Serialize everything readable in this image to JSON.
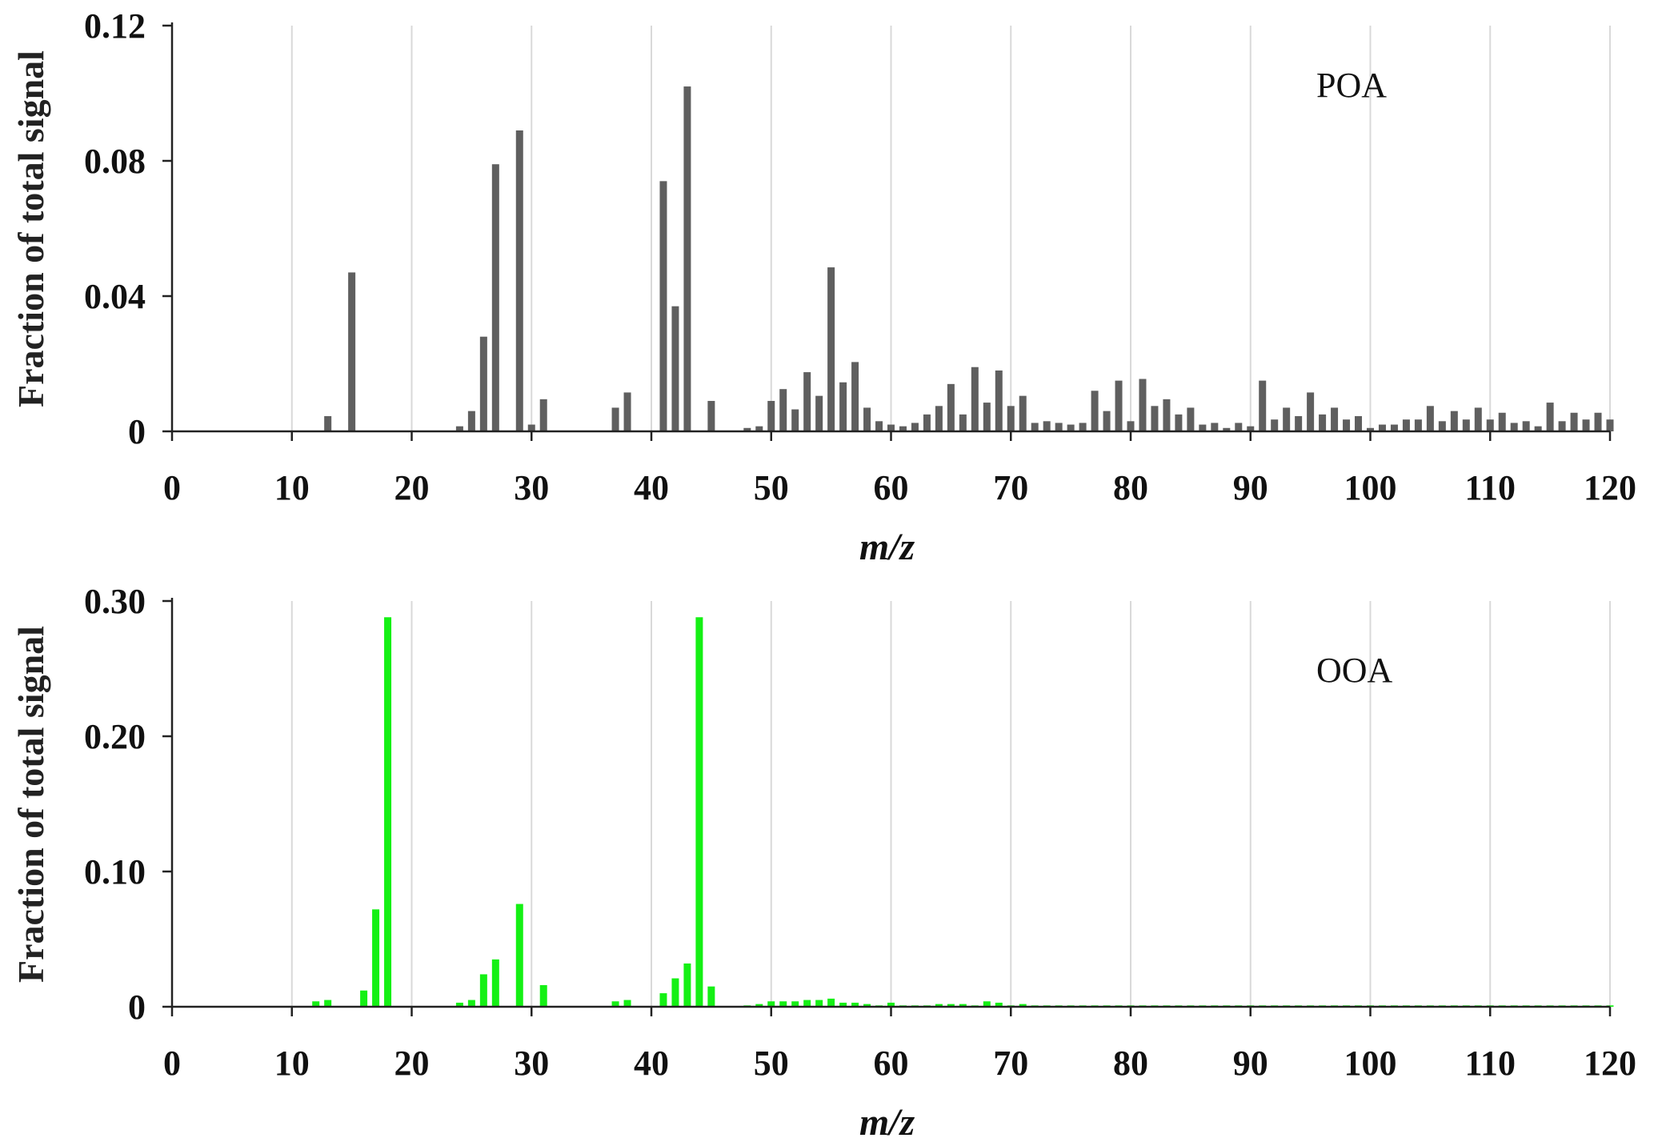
{
  "chart_data": [
    {
      "type": "bar",
      "annotation": "POA",
      "xlabel": "m/z",
      "ylabel": "Fraction of total signal",
      "xlim": [
        0,
        120
      ],
      "ylim": [
        0,
        0.12
      ],
      "xticks": [
        "0",
        "10",
        "20",
        "30",
        "40",
        "50",
        "60",
        "70",
        "80",
        "90",
        "100",
        "110",
        "120"
      ],
      "yticks": [
        "0",
        "0.04",
        "0.08",
        "0.12"
      ],
      "grid": "vertical",
      "color": "#5f5f5f",
      "x": [
        13,
        15,
        24,
        25,
        26,
        27,
        29,
        30,
        31,
        37,
        38,
        41,
        42,
        43,
        45,
        48,
        49,
        50,
        51,
        52,
        53,
        54,
        55,
        56,
        57,
        58,
        59,
        60,
        61,
        62,
        63,
        64,
        65,
        66,
        67,
        68,
        69,
        70,
        71,
        72,
        73,
        74,
        75,
        76,
        77,
        78,
        79,
        80,
        81,
        82,
        83,
        84,
        85,
        86,
        87,
        88,
        89,
        90,
        91,
        92,
        93,
        94,
        95,
        96,
        97,
        98,
        99,
        100,
        101,
        102,
        103,
        104,
        105,
        106,
        107,
        108,
        109,
        110,
        111,
        112,
        113,
        114,
        115,
        116,
        117,
        118,
        119,
        120
      ],
      "values": [
        0.0045,
        0.047,
        0.0015,
        0.006,
        0.028,
        0.079,
        0.089,
        0.002,
        0.0095,
        0.007,
        0.0115,
        0.074,
        0.037,
        0.102,
        0.009,
        0.001,
        0.0015,
        0.009,
        0.0125,
        0.0065,
        0.0175,
        0.0105,
        0.0485,
        0.0145,
        0.0205,
        0.007,
        0.003,
        0.002,
        0.0015,
        0.0025,
        0.005,
        0.0075,
        0.014,
        0.005,
        0.019,
        0.0085,
        0.018,
        0.0075,
        0.0105,
        0.0025,
        0.003,
        0.0025,
        0.002,
        0.0025,
        0.012,
        0.006,
        0.015,
        0.003,
        0.0155,
        0.0075,
        0.0095,
        0.005,
        0.007,
        0.002,
        0.0025,
        0.001,
        0.0025,
        0.0015,
        0.015,
        0.0035,
        0.007,
        0.0045,
        0.0115,
        0.005,
        0.007,
        0.0035,
        0.0045,
        0.001,
        0.002,
        0.002,
        0.0035,
        0.0035,
        0.0075,
        0.003,
        0.006,
        0.0035,
        0.007,
        0.0035,
        0.0055,
        0.0025,
        0.003,
        0.0015,
        0.0085,
        0.003,
        0.0055,
        0.0035,
        0.0055,
        0.0035
      ]
    },
    {
      "type": "bar",
      "annotation": "OOA",
      "xlabel": "m/z",
      "ylabel": "Fraction of total signal",
      "xlim": [
        0,
        120
      ],
      "ylim": [
        0,
        0.3
      ],
      "xticks": [
        "0",
        "10",
        "20",
        "30",
        "40",
        "50",
        "60",
        "70",
        "80",
        "90",
        "100",
        "110",
        "120"
      ],
      "yticks": [
        "0",
        "0.10",
        "0.20",
        "0.30"
      ],
      "grid": "vertical",
      "color": "#14f014",
      "x": [
        12,
        13,
        16,
        17,
        18,
        24,
        25,
        26,
        27,
        29,
        31,
        37,
        38,
        41,
        42,
        43,
        44,
        45,
        48,
        49,
        50,
        51,
        52,
        53,
        54,
        55,
        56,
        57,
        58,
        59,
        60,
        61,
        62,
        63,
        64,
        65,
        66,
        67,
        68,
        69,
        70,
        71,
        72,
        73,
        74,
        75,
        76,
        77,
        78,
        79,
        80,
        81,
        82,
        83,
        84,
        85,
        86,
        87,
        88,
        89,
        90,
        91,
        92,
        93,
        94,
        95,
        96,
        97,
        98,
        99,
        100,
        101,
        102,
        103,
        104,
        105,
        106,
        107,
        108,
        109,
        110,
        111,
        112,
        113,
        114,
        115,
        116,
        117,
        118,
        119,
        120
      ],
      "values": [
        0.004,
        0.005,
        0.012,
        0.072,
        0.288,
        0.003,
        0.005,
        0.024,
        0.035,
        0.076,
        0.016,
        0.004,
        0.005,
        0.01,
        0.021,
        0.032,
        0.288,
        0.015,
        0.001,
        0.002,
        0.004,
        0.004,
        0.004,
        0.005,
        0.005,
        0.006,
        0.003,
        0.003,
        0.002,
        0.001,
        0.003,
        0.001,
        0.001,
        0.001,
        0.002,
        0.002,
        0.002,
        0.001,
        0.004,
        0.003,
        0.001,
        0.002,
        0.001,
        0.001,
        0.001,
        0.001,
        0.001,
        0.001,
        0.001,
        0.001,
        0.001,
        0.001,
        0.001,
        0.001,
        0.001,
        0.001,
        0.001,
        0.001,
        0.001,
        0.001,
        0.001,
        0.001,
        0.001,
        0.001,
        0.001,
        0.001,
        0.001,
        0.001,
        0.001,
        0.001,
        0.001,
        0.001,
        0.001,
        0.001,
        0.001,
        0.001,
        0.001,
        0.001,
        0.001,
        0.001,
        0.001,
        0.001,
        0.001,
        0.001,
        0.001,
        0.001,
        0.001,
        0.001,
        0.001,
        0.001,
        0.001
      ]
    }
  ]
}
